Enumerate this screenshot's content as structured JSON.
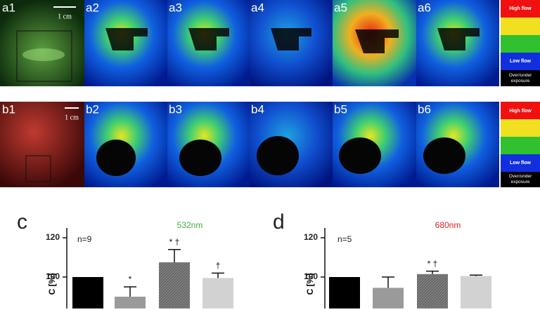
{
  "figure": {
    "row_a": {
      "labels": [
        "a1",
        "a2",
        "a3",
        "a4",
        "a5",
        "a6"
      ],
      "scale_bar": "1 cm"
    },
    "row_b": {
      "labels": [
        "b1",
        "b2",
        "b3",
        "b4",
        "b5",
        "b6"
      ],
      "scale_bar": "1 cm"
    },
    "legend": {
      "high": "High flow",
      "low": "Low flow",
      "exposure": "Over/under exposure"
    }
  },
  "chart_data": [
    {
      "type": "bar",
      "panel_label": "c",
      "title": "532nm",
      "title_color": "#3cb03c",
      "note": "n=9",
      "ylabel": "C [%]",
      "values": [
        100,
        90,
        107.5,
        99.5
      ],
      "errors": [
        0,
        5,
        6.5,
        2.5
      ],
      "annotations": [
        null,
        "*",
        "* †",
        "†"
      ],
      "colors": [
        "#000000",
        "#9a9a9a",
        "#7a7a7a",
        "#d2d2d2"
      ],
      "ylim": [
        84,
        125
      ],
      "yticks": [
        100,
        120
      ]
    },
    {
      "type": "bar",
      "panel_label": "d",
      "title": "680nm",
      "title_color": "#e02020",
      "note": "n=5",
      "ylabel": "C [%]",
      "values": [
        100,
        94.5,
        101.5,
        100.5
      ],
      "errors": [
        0,
        5.5,
        1.5,
        0.5
      ],
      "annotations": [
        null,
        null,
        "* †",
        null
      ],
      "colors": [
        "#000000",
        "#9a9a9a",
        "#7a7a7a",
        "#d2d2d2"
      ],
      "ylim": [
        84,
        125
      ],
      "yticks": [
        100,
        120
      ]
    }
  ]
}
